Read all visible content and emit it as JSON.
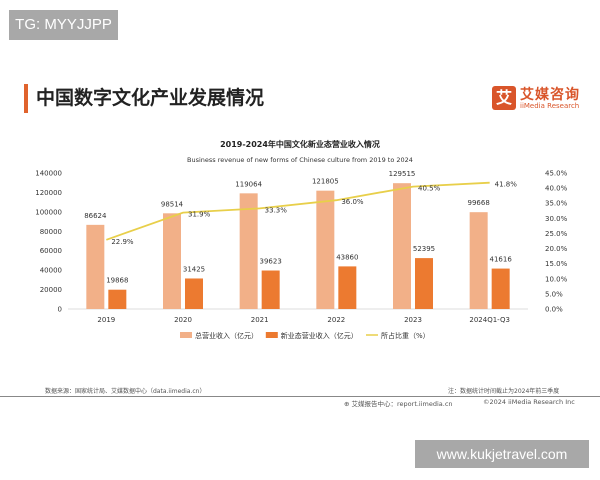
{
  "watermarks": {
    "top": "TG: MYYJJPP",
    "bottom": "www.kukjetravel.com"
  },
  "header": {
    "title": "中国数字文化产业发展情况",
    "logo_icon": "艾",
    "logo_cn": "艾媒咨询",
    "logo_en": "iiMedia Research"
  },
  "colors": {
    "accent": "#e0632d",
    "total": "#f2b088",
    "new": "#ec7a30",
    "ratio": "#e8cf4a"
  },
  "chart_data": {
    "type": "bar",
    "title": "2019-2024年中国文化新业态营业收入情况",
    "subtitle": "Business revenue of new forms of Chinese culture from 2019 to 2024",
    "categories": [
      "2019",
      "2020",
      "2021",
      "2022",
      "2023",
      "2024Q1-Q3"
    ],
    "series": [
      {
        "name": "总营业收入（亿元）",
        "type": "bar",
        "axis": "left",
        "values": [
          86624,
          98514,
          119064,
          121805,
          129515,
          99668
        ]
      },
      {
        "name": "新业态营业收入（亿元）",
        "type": "bar",
        "axis": "left",
        "values": [
          19868,
          31425,
          39623,
          43860,
          52395,
          41616
        ]
      },
      {
        "name": "所占比重（%）",
        "type": "line",
        "axis": "right",
        "values": [
          22.9,
          31.9,
          33.3,
          36.0,
          40.5,
          41.8
        ],
        "labels": [
          "22.9%",
          "31.9%",
          "33.3%",
          "36.0%",
          "40.5%",
          "41.8%"
        ]
      }
    ],
    "ylim": [
      0,
      140000
    ],
    "yticks": [
      "0",
      "20000",
      "40000",
      "60000",
      "80000",
      "100000",
      "120000",
      "140000"
    ],
    "y2lim": [
      0,
      45
    ],
    "y2ticks": [
      "0.0%",
      "5.0%",
      "10.0%",
      "15.0%",
      "20.0%",
      "25.0%",
      "30.0%",
      "35.0%",
      "40.0%",
      "45.0%"
    ],
    "legend": "bottom",
    "grid": false
  },
  "footer": {
    "source": "数据来源：国家统计局、艾媒数据中心（data.iimedia.cn）",
    "note": "注：数据统计时间截止为2024年前三季度",
    "report": "艾媒报告中心：report.iimedia.cn",
    "copyright": "©2024  iiMedia Research  Inc"
  }
}
